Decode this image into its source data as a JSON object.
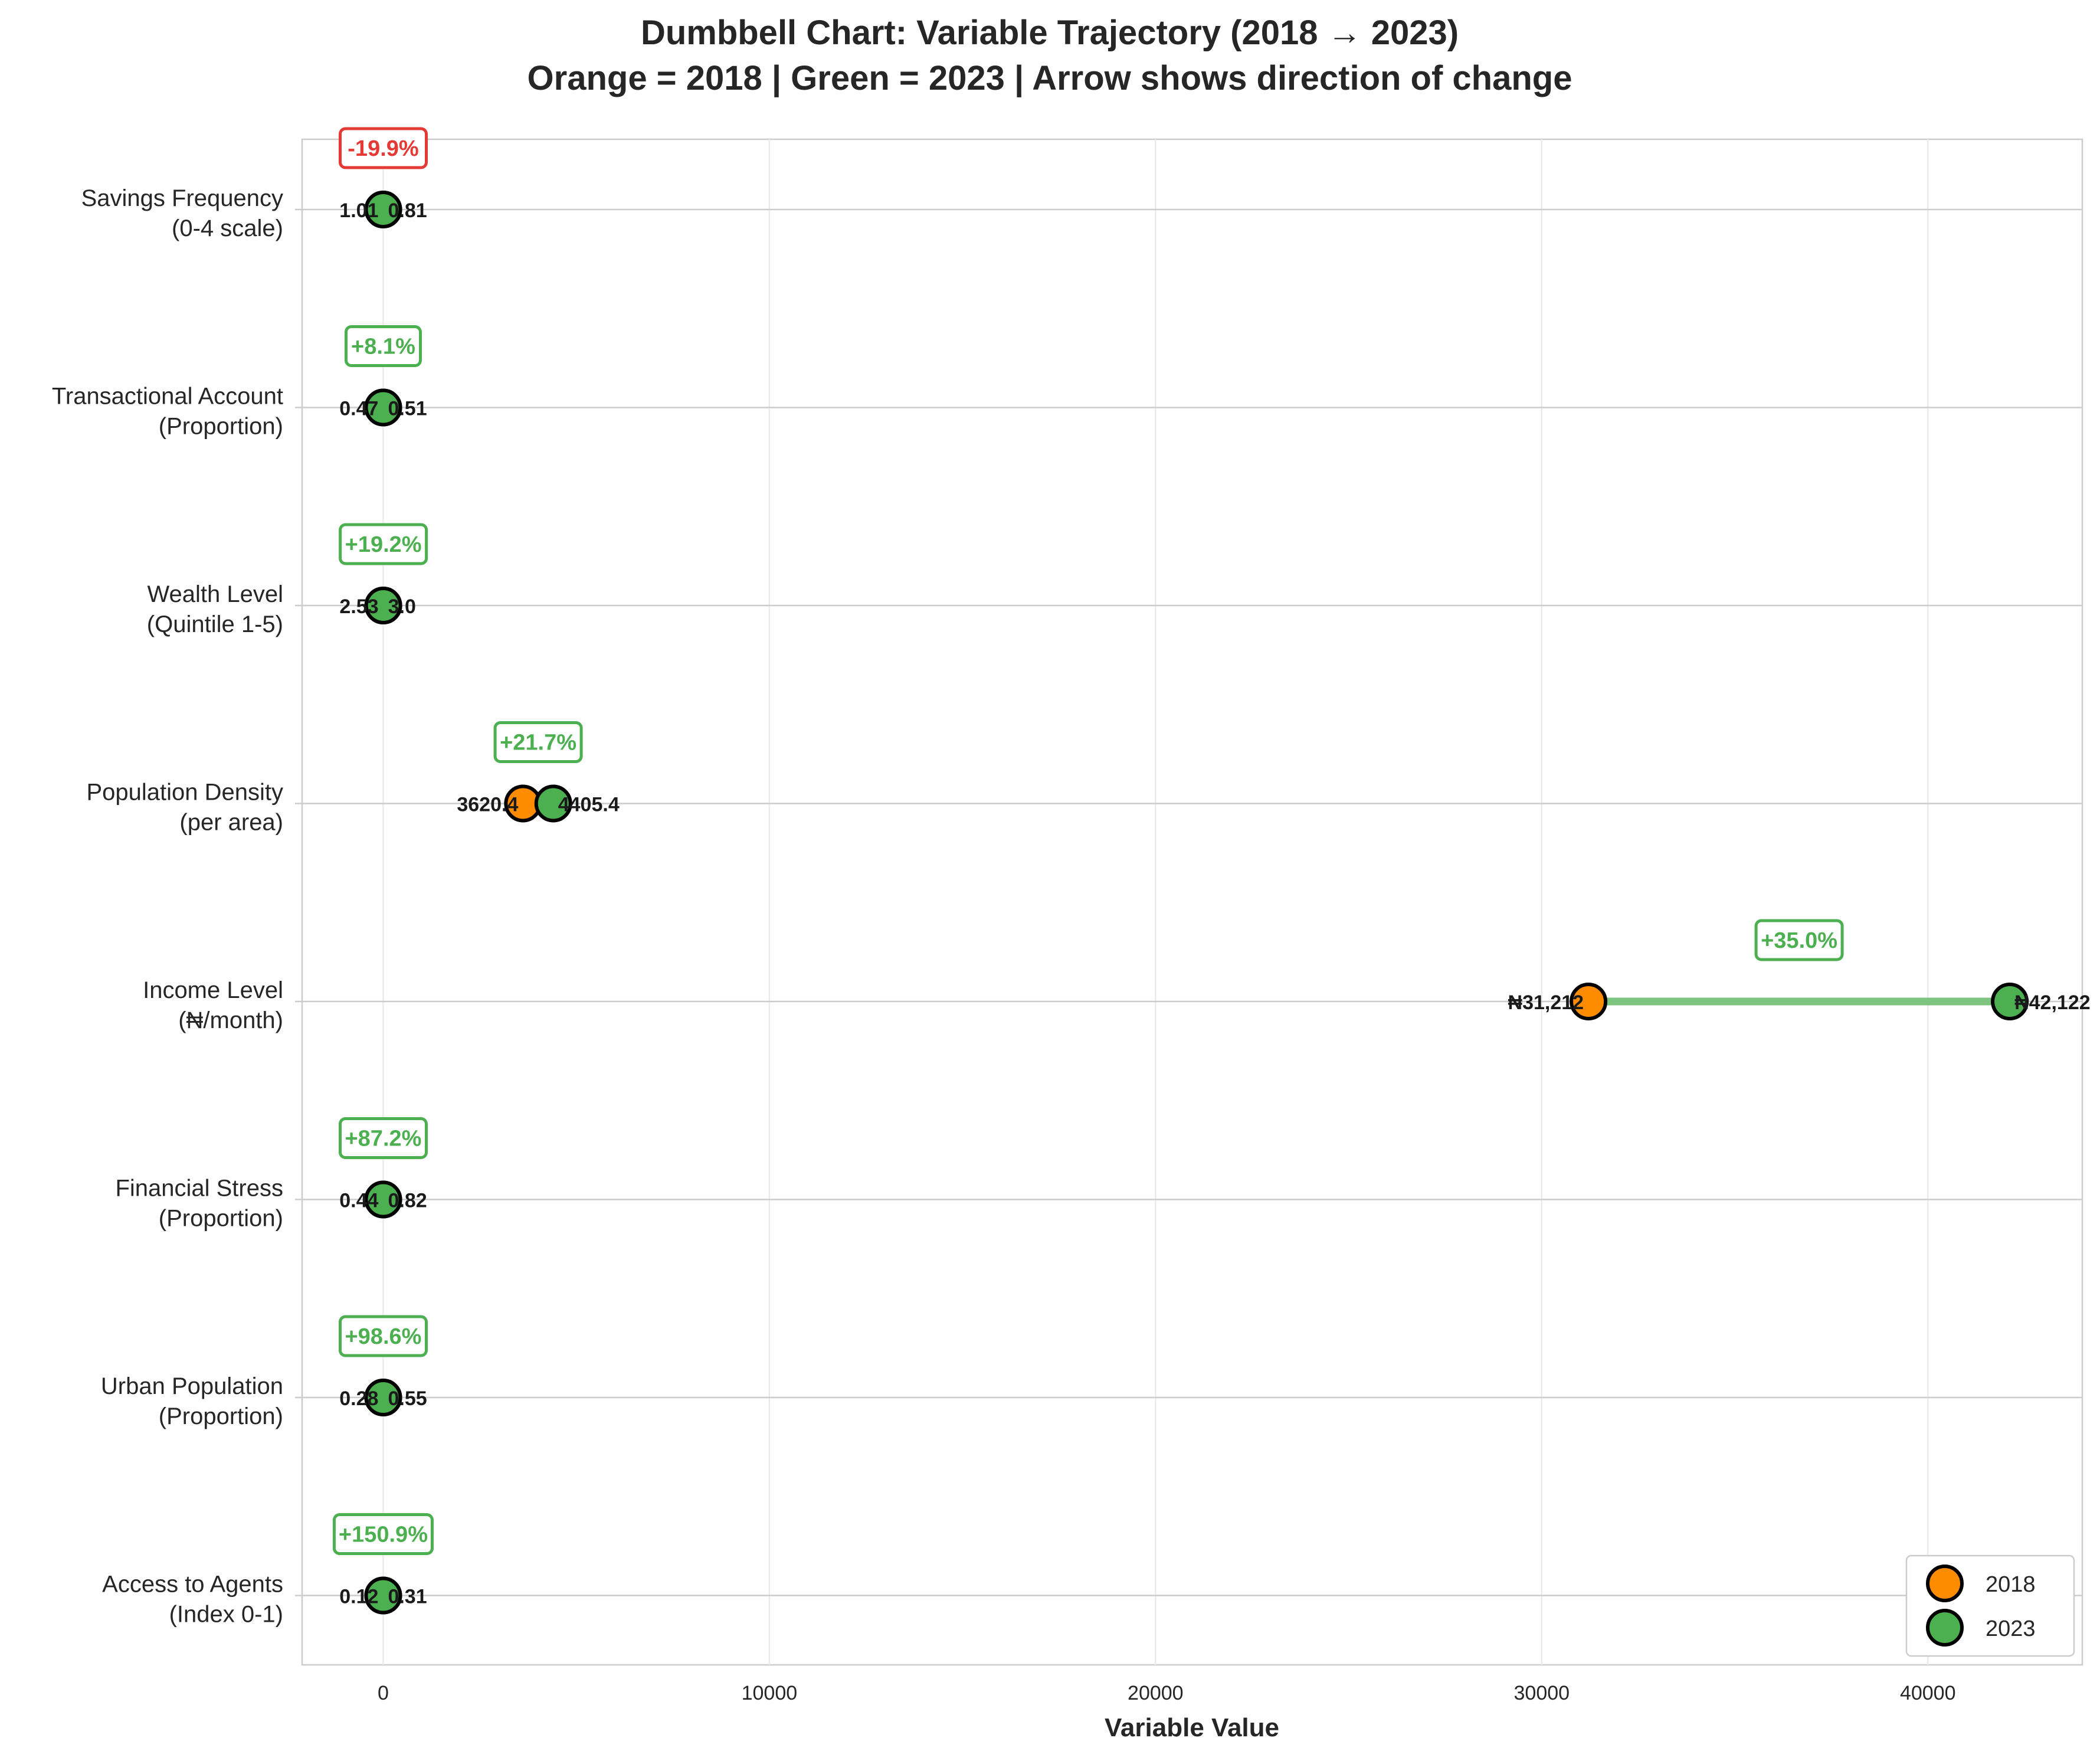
{
  "chart_data": {
    "type": "dumbbell",
    "title": "Dumbbell Chart: Variable Trajectory (2018 → 2023)",
    "subtitle": "Orange = 2018 | Green = 2023 | Arrow shows direction of change",
    "xlabel": "Variable Value",
    "ylabel": "",
    "xlim": [
      -2100,
      44000
    ],
    "xticks": [
      0,
      10000,
      20000,
      30000,
      40000
    ],
    "xtick_labels": [
      "0",
      "10000",
      "20000",
      "30000",
      "40000"
    ],
    "grid": true,
    "legend_position": "bottom-right",
    "series": [
      {
        "name": "2018",
        "color": "#ff8c00"
      },
      {
        "name": "2023",
        "color": "#4caf50"
      }
    ],
    "categories": [
      {
        "label_line1": "Savings Frequency",
        "label_line2": "(0-4 scale)",
        "v2018": 1.01,
        "v2023": 0.81,
        "label2018": "1.01",
        "label2023": "0.81",
        "change_label": "-19.9%",
        "direction": "down"
      },
      {
        "label_line1": "Transactional Account",
        "label_line2": "(Proportion)",
        "v2018": 0.47,
        "v2023": 0.51,
        "label2018": "0.47",
        "label2023": "0.51",
        "change_label": "+8.1%",
        "direction": "up"
      },
      {
        "label_line1": "Wealth Level",
        "label_line2": "(Quintile 1-5)",
        "v2018": 2.53,
        "v2023": 3.0,
        "label2018": "2.53",
        "label2023": "3.0",
        "change_label": "+19.2%",
        "direction": "up"
      },
      {
        "label_line1": "Population Density",
        "label_line2": "(per area)",
        "v2018": 3620.4,
        "v2023": 4405.4,
        "label2018": "3620.4",
        "label2023": "4405.4",
        "change_label": "+21.7%",
        "direction": "up"
      },
      {
        "label_line1": "Income Level",
        "label_line2": "(₦/month)",
        "v2018": 31212,
        "v2023": 42122,
        "label2018": "₦31,212",
        "label2023": "₦42,122",
        "change_label": "+35.0%",
        "direction": "up"
      },
      {
        "label_line1": "Financial Stress",
        "label_line2": "(Proportion)",
        "v2018": 0.44,
        "v2023": 0.82,
        "label2018": "0.44",
        "label2023": "0.82",
        "change_label": "+87.2%",
        "direction": "up"
      },
      {
        "label_line1": "Urban Population",
        "label_line2": "(Proportion)",
        "v2018": 0.28,
        "v2023": 0.55,
        "label2018": "0.28",
        "label2023": "0.55",
        "change_label": "+98.6%",
        "direction": "up"
      },
      {
        "label_line1": "Access to Agents",
        "label_line2": "(Index 0-1)",
        "v2018": 0.12,
        "v2023": 0.31,
        "label2018": "0.12",
        "label2023": "0.31",
        "change_label": "+150.9%",
        "direction": "up"
      }
    ],
    "colors": {
      "y2018": "#ff8c00",
      "y2023": "#4caf50",
      "increase": "#4caf50",
      "decrease": "#e53935",
      "increase_line": "#7cc47f",
      "decrease_line": "#ef9a9a"
    }
  }
}
